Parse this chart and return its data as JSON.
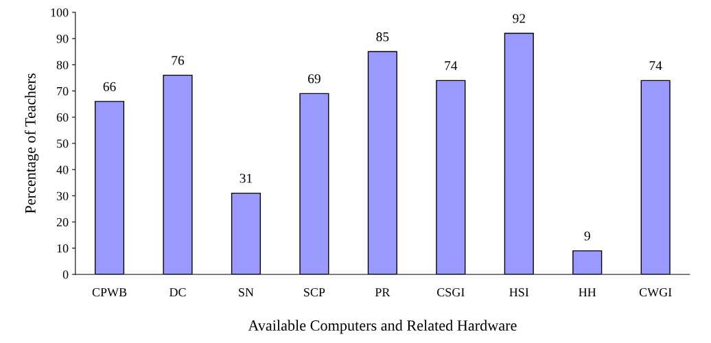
{
  "chart_data": {
    "type": "bar",
    "xlabel": "Available Computers and Related Hardware",
    "ylabel": "Percentage of Teachers",
    "categories": [
      "CPWB",
      "DC",
      "SN",
      "SCP",
      "PR",
      "CSGI",
      "HSI",
      "HH",
      "CWGI"
    ],
    "values": [
      66,
      76,
      31,
      69,
      85,
      74,
      92,
      9,
      74
    ],
    "color": "#9999ff",
    "ylim": [
      0,
      100
    ],
    "yticks": [
      0,
      10,
      20,
      30,
      40,
      50,
      60,
      70,
      80,
      90,
      100
    ],
    "data_labels": true,
    "grid": false
  }
}
